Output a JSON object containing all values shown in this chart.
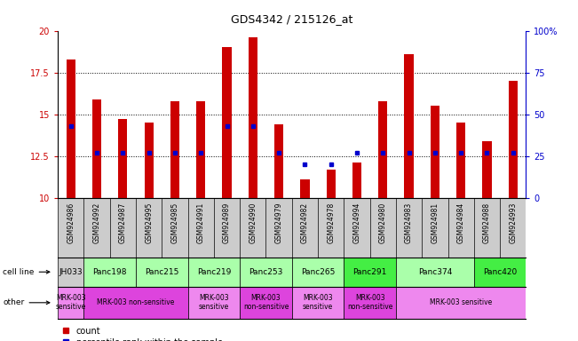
{
  "title": "GDS4342 / 215126_at",
  "samples": [
    "GSM924986",
    "GSM924992",
    "GSM924987",
    "GSM924995",
    "GSM924985",
    "GSM924991",
    "GSM924989",
    "GSM924990",
    "GSM924979",
    "GSM924982",
    "GSM924978",
    "GSM924994",
    "GSM924980",
    "GSM924983",
    "GSM924981",
    "GSM924984",
    "GSM924988",
    "GSM924993"
  ],
  "counts": [
    18.3,
    15.9,
    14.7,
    14.5,
    15.8,
    15.8,
    19.0,
    19.6,
    14.4,
    11.1,
    11.7,
    12.1,
    15.8,
    18.6,
    15.5,
    14.5,
    13.4,
    17.0
  ],
  "percentiles": [
    43,
    27,
    27,
    27,
    27,
    27,
    43,
    43,
    27,
    20,
    20,
    27,
    27,
    27,
    27,
    27,
    27,
    27
  ],
  "cell_line_spans": [
    {
      "label": "JH033",
      "start": 0,
      "end": 1,
      "color": "#cccccc"
    },
    {
      "label": "Panc198",
      "start": 1,
      "end": 3,
      "color": "#aaffaa"
    },
    {
      "label": "Panc215",
      "start": 3,
      "end": 5,
      "color": "#aaffaa"
    },
    {
      "label": "Panc219",
      "start": 5,
      "end": 7,
      "color": "#aaffaa"
    },
    {
      "label": "Panc253",
      "start": 7,
      "end": 9,
      "color": "#aaffaa"
    },
    {
      "label": "Panc265",
      "start": 9,
      "end": 11,
      "color": "#aaffaa"
    },
    {
      "label": "Panc291",
      "start": 11,
      "end": 13,
      "color": "#44ee44"
    },
    {
      "label": "Panc374",
      "start": 13,
      "end": 16,
      "color": "#aaffaa"
    },
    {
      "label": "Panc420",
      "start": 16,
      "end": 18,
      "color": "#44ee44"
    }
  ],
  "other_spans": [
    {
      "label": "MRK-003\nsensitive",
      "start": 0,
      "end": 1,
      "color": "#ee88ee"
    },
    {
      "label": "MRK-003 non-sensitive",
      "start": 1,
      "end": 5,
      "color": "#dd44dd"
    },
    {
      "label": "MRK-003\nsensitive",
      "start": 5,
      "end": 7,
      "color": "#ee88ee"
    },
    {
      "label": "MRK-003\nnon-sensitive",
      "start": 7,
      "end": 9,
      "color": "#dd44dd"
    },
    {
      "label": "MRK-003\nsensitive",
      "start": 9,
      "end": 11,
      "color": "#ee88ee"
    },
    {
      "label": "MRK-003\nnon-sensitive",
      "start": 11,
      "end": 13,
      "color": "#dd44dd"
    },
    {
      "label": "MRK-003 sensitive",
      "start": 13,
      "end": 18,
      "color": "#ee88ee"
    }
  ],
  "sample_bg_colors": [
    "#cccccc",
    "#cccccc",
    "#cccccc",
    "#cccccc",
    "#cccccc",
    "#cccccc",
    "#cccccc",
    "#cccccc",
    "#cccccc",
    "#cccccc",
    "#cccccc",
    "#cccccc",
    "#cccccc",
    "#cccccc",
    "#cccccc",
    "#cccccc",
    "#cccccc",
    "#cccccc"
  ],
  "ylim": [
    10,
    20
  ],
  "y_ticks_left": [
    10,
    12.5,
    15,
    17.5,
    20
  ],
  "y_ticks_right": [
    0,
    25,
    50,
    75,
    100
  ],
  "bar_color": "#cc0000",
  "dot_color": "#0000cc",
  "bar_width": 0.35,
  "baseline": 10,
  "dotted_lines": [
    12.5,
    15.0,
    17.5
  ]
}
